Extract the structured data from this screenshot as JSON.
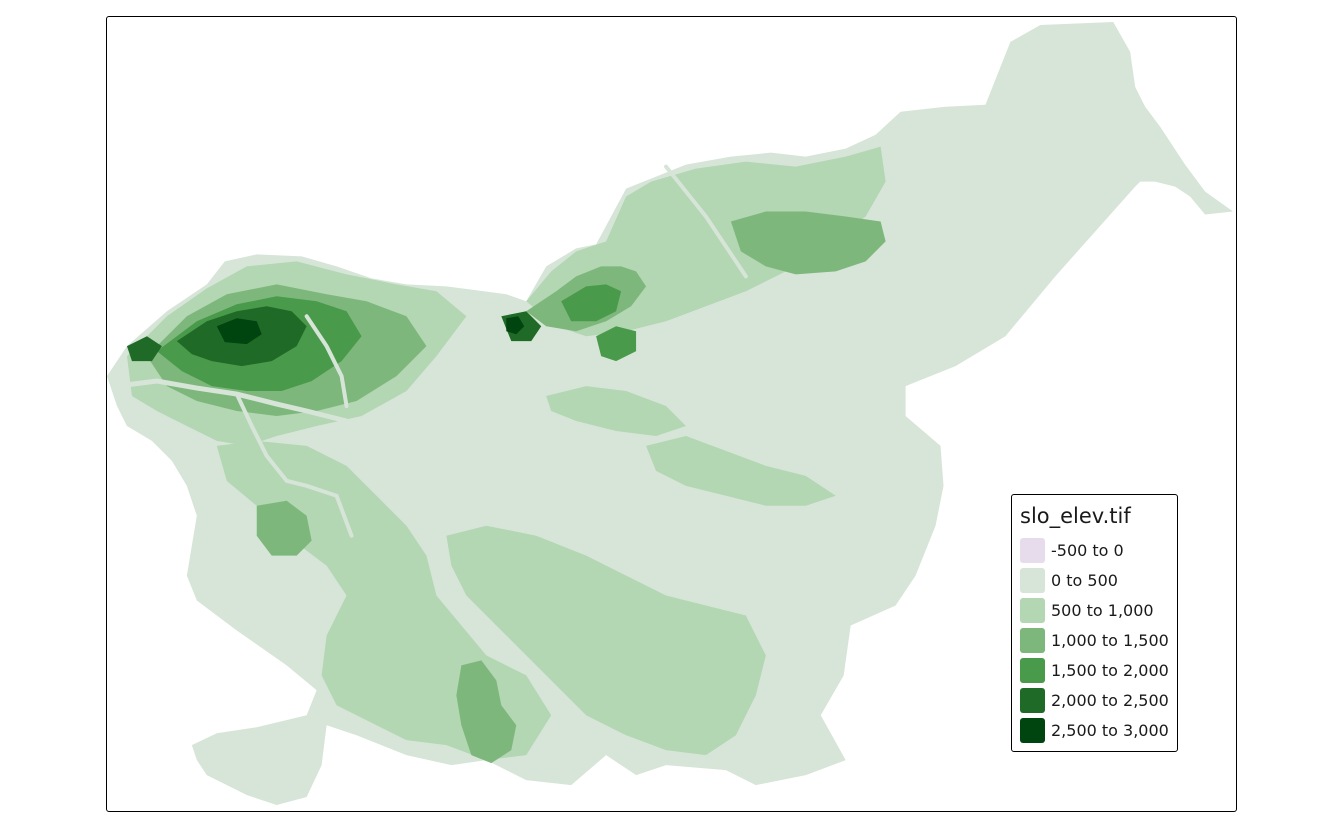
{
  "map": {
    "legend": {
      "title": "slo_elev.tif",
      "classes": [
        {
          "label": "-500 to 0",
          "color": "#e7dcec"
        },
        {
          "label": "0 to 500",
          "color": "#d6e5d8"
        },
        {
          "label": "500 to 1,000",
          "color": "#b3d6b3"
        },
        {
          "label": "1,000 to 1,500",
          "color": "#7db77c"
        },
        {
          "label": "1,500 to 2,000",
          "color": "#4a9a4b"
        },
        {
          "label": "2,000 to 2,500",
          "color": "#206a27"
        },
        {
          "label": "2,500 to 3,000",
          "color": "#00440f"
        }
      ]
    }
  }
}
